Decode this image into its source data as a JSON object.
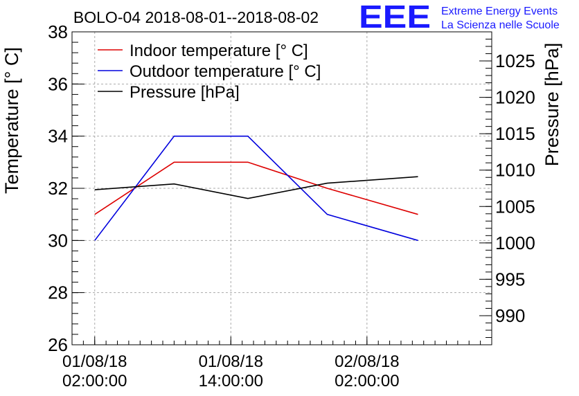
{
  "header": {
    "logo_text": "EEE",
    "logo_line1": "Extreme Energy Events",
    "logo_line2": "La Scienza nelle Scuole"
  },
  "colors": {
    "indoor": "#dd0000",
    "outdoor": "#0000dd",
    "pressure": "#000000",
    "logo": "#1a1aff",
    "grid": "#aaaaaa"
  },
  "chart_data": {
    "type": "line",
    "title": "BOLO-04 2018-08-01--2018-08-02",
    "ylabel": "Temperature [° C]",
    "y2label": "Pressure [hPa]",
    "xlabel": "",
    "ylim": [
      26,
      38
    ],
    "y2lim": [
      986,
      1029
    ],
    "yticks": [
      26,
      28,
      30,
      32,
      34,
      36,
      38
    ],
    "y2ticks": [
      990,
      995,
      1000,
      1005,
      1010,
      1015,
      1020,
      1025
    ],
    "xlim": [
      "2018-08-01T00:00",
      "2018-08-02T13:00"
    ],
    "xticks": [
      {
        "x": "2018-08-01T02:00",
        "line1": "01/08/18",
        "line2": "02:00:00"
      },
      {
        "x": "2018-08-01T14:00",
        "line1": "01/08/18",
        "line2": "14:00:00"
      },
      {
        "x": "2018-08-02T02:00",
        "line1": "02/08/18",
        "line2": "02:00:00"
      }
    ],
    "grid": true,
    "legend_position": "top-left",
    "series": [
      {
        "name": "Indoor temperature [° C]",
        "axis": "left",
        "color_key": "indoor",
        "x": [
          "2018-08-01T02:00",
          "2018-08-01T09:00",
          "2018-08-01T15:30",
          "2018-08-01T22:30",
          "2018-08-02T06:30"
        ],
        "y": [
          31,
          33,
          33,
          32,
          31
        ]
      },
      {
        "name": "Outdoor temperature [° C]",
        "axis": "left",
        "color_key": "outdoor",
        "x": [
          "2018-08-01T02:00",
          "2018-08-01T09:00",
          "2018-08-01T15:30",
          "2018-08-01T22:30",
          "2018-08-02T06:30"
        ],
        "y": [
          30,
          34,
          34,
          31,
          30
        ]
      },
      {
        "name": "Pressure [hPa]",
        "axis": "right",
        "color_key": "pressure",
        "x": [
          "2018-08-01T02:00",
          "2018-08-01T09:00",
          "2018-08-01T15:30",
          "2018-08-01T22:30",
          "2018-08-02T06:30"
        ],
        "y": [
          1007.3,
          1008.1,
          1006.1,
          1008.2,
          1009.1
        ]
      }
    ]
  }
}
